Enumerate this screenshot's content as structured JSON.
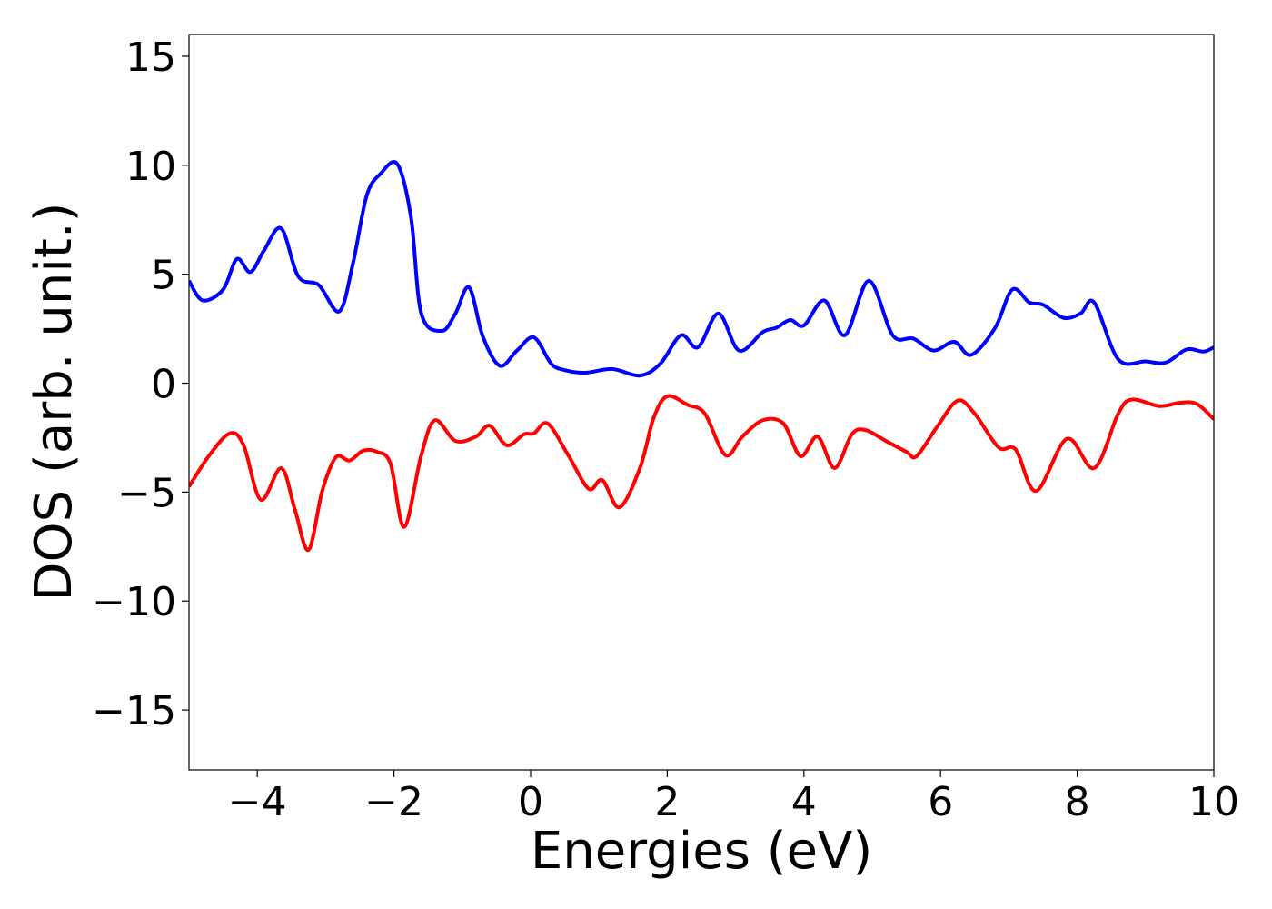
{
  "chart_data": {
    "type": "line",
    "xlabel": "Energies (eV)",
    "ylabel": "DOS (arb. unit.)",
    "xlim": [
      -5,
      10
    ],
    "ylim": [
      -17.75,
      16
    ],
    "xticks": [
      {
        "value": -4,
        "label": "−4"
      },
      {
        "value": -2,
        "label": "−2"
      },
      0,
      2,
      4,
      6,
      8,
      10
    ],
    "yticks": [
      {
        "value": -15,
        "label": "−15"
      },
      {
        "value": -10,
        "label": "−10"
      },
      {
        "value": -5,
        "label": "−5"
      },
      0,
      5,
      10,
      15
    ],
    "series": [
      {
        "color": "#0000ff",
        "x": [
          -5,
          -4.8,
          -4.5,
          -4.3,
          -4.1,
          -3.9,
          -3.65,
          -3.4,
          -3.1,
          -2.8,
          -2.6,
          -2.4,
          -2.2,
          -1.95,
          -1.75,
          -1.6,
          -1.3,
          -1.1,
          -0.9,
          -0.7,
          -0.45,
          -0.2,
          0.05,
          0.3,
          0.5,
          0.8,
          1.2,
          1.6,
          1.9,
          2.2,
          2.45,
          2.75,
          3.05,
          3.4,
          3.6,
          3.8,
          4.0,
          4.3,
          4.6,
          4.95,
          5.3,
          5.6,
          5.9,
          6.2,
          6.45,
          6.8,
          7.05,
          7.3,
          7.5,
          7.8,
          8.05,
          8.25,
          8.6,
          9.0,
          9.3,
          9.6,
          9.85,
          10
        ],
        "values": [
          4.7,
          3.8,
          4.3,
          5.7,
          5.1,
          6.1,
          7.1,
          4.9,
          4.5,
          3.3,
          5.5,
          8.6,
          9.6,
          10.05,
          7.6,
          3.2,
          2.4,
          3.2,
          4.4,
          2.15,
          0.8,
          1.5,
          2.1,
          0.9,
          0.6,
          0.48,
          0.65,
          0.35,
          0.9,
          2.2,
          1.65,
          3.2,
          1.5,
          2.35,
          2.55,
          2.9,
          2.65,
          3.8,
          2.2,
          4.7,
          2.2,
          2.05,
          1.5,
          1.9,
          1.3,
          2.55,
          4.3,
          3.7,
          3.6,
          3.0,
          3.2,
          3.7,
          1.1,
          1.0,
          0.95,
          1.55,
          1.45,
          1.65
        ]
      },
      {
        "color": "#ff0000",
        "x": [
          -5,
          -4.7,
          -4.4,
          -4.2,
          -3.95,
          -3.65,
          -3.45,
          -3.25,
          -3.05,
          -2.85,
          -2.65,
          -2.45,
          -2.25,
          -2.05,
          -1.85,
          -1.6,
          -1.4,
          -1.1,
          -0.8,
          -0.6,
          -0.35,
          -0.1,
          0.05,
          0.25,
          0.55,
          0.85,
          1.05,
          1.3,
          1.6,
          1.8,
          2.0,
          2.3,
          2.55,
          2.85,
          3.1,
          3.4,
          3.7,
          3.95,
          4.2,
          4.45,
          4.7,
          4.9,
          5.2,
          5.5,
          5.65,
          5.95,
          6.25,
          6.5,
          6.85,
          7.1,
          7.4,
          7.85,
          8.25,
          8.6,
          8.8,
          9.2,
          9.5,
          9.75,
          10
        ],
        "values": [
          -4.75,
          -3.3,
          -2.3,
          -2.85,
          -5.35,
          -3.9,
          -5.8,
          -7.65,
          -4.95,
          -3.4,
          -3.55,
          -3.1,
          -3.15,
          -3.7,
          -6.6,
          -3.3,
          -1.7,
          -2.65,
          -2.45,
          -1.95,
          -2.85,
          -2.35,
          -2.3,
          -1.85,
          -3.3,
          -4.85,
          -4.45,
          -5.7,
          -3.9,
          -1.6,
          -0.6,
          -1.0,
          -1.4,
          -3.3,
          -2.45,
          -1.7,
          -1.85,
          -3.35,
          -2.45,
          -3.9,
          -2.35,
          -2.15,
          -2.65,
          -3.15,
          -3.35,
          -2.0,
          -0.8,
          -1.4,
          -2.95,
          -3.05,
          -4.95,
          -2.55,
          -3.9,
          -1.4,
          -0.75,
          -1.05,
          -0.9,
          -0.95,
          -1.65
        ]
      }
    ]
  }
}
